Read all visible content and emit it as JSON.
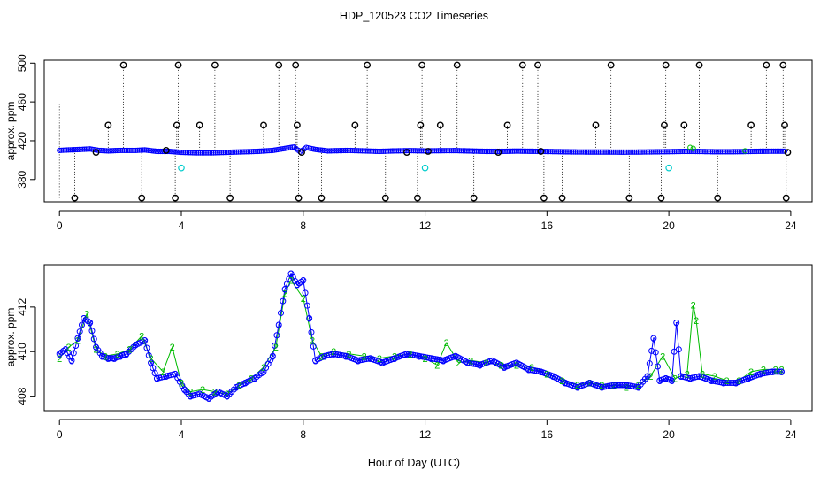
{
  "figure": {
    "title": "HDP_120523  CO2 Timeseries",
    "xlabel": "Hour of Day (UTC)"
  },
  "colors": {
    "axis": "#000000",
    "series_outlier": "#000000",
    "series_main": "#0000ff",
    "series_flag": "#00cccc",
    "series_2": "#00bb00",
    "series_3": "#0000ff"
  },
  "chart_data": [
    {
      "type": "scatter",
      "title": "",
      "xlabel": "",
      "ylabel": "approx. ppm",
      "xlim": [
        -0.5,
        24.7
      ],
      "ylim": [
        357,
        503
      ],
      "xticks": [
        0,
        4,
        8,
        12,
        16,
        20,
        24
      ],
      "yticks": [
        380,
        420,
        460,
        500
      ],
      "baseline": [
        [
          0,
          410
        ],
        [
          0.3,
          410.5
        ],
        [
          0.7,
          411
        ],
        [
          1.0,
          411.5
        ],
        [
          1.3,
          410
        ],
        [
          1.6,
          409.5
        ],
        [
          2.0,
          410
        ],
        [
          2.5,
          410
        ],
        [
          2.8,
          410.5
        ],
        [
          3.2,
          409
        ],
        [
          3.6,
          409
        ],
        [
          4.0,
          408
        ],
        [
          4.5,
          407.5
        ],
        [
          5.0,
          407.5
        ],
        [
          5.5,
          408
        ],
        [
          6.0,
          408.5
        ],
        [
          6.5,
          409
        ],
        [
          7.0,
          410
        ],
        [
          7.4,
          412
        ],
        [
          7.7,
          413.5
        ],
        [
          7.9,
          408.5
        ],
        [
          8.1,
          413
        ],
        [
          8.4,
          411
        ],
        [
          8.8,
          409.5
        ],
        [
          9.5,
          410
        ],
        [
          10,
          409.5
        ],
        [
          10.5,
          409
        ],
        [
          11,
          409.5
        ],
        [
          11.5,
          409.8
        ],
        [
          12,
          409.5
        ],
        [
          12.5,
          409.7
        ],
        [
          13,
          409.8
        ],
        [
          13.5,
          409.4
        ],
        [
          14,
          409
        ],
        [
          14.5,
          409
        ],
        [
          15,
          409.3
        ],
        [
          15.5,
          409.1
        ],
        [
          16,
          408.9
        ],
        [
          16.5,
          408.6
        ],
        [
          17,
          408.4
        ],
        [
          17.5,
          408.3
        ],
        [
          18,
          408.3
        ],
        [
          18.5,
          408.2
        ],
        [
          19,
          408.3
        ],
        [
          19.5,
          408.5
        ],
        [
          20,
          408.7
        ],
        [
          20.5,
          409
        ],
        [
          21,
          408.9
        ],
        [
          21.5,
          408.6
        ],
        [
          22,
          408.6
        ],
        [
          22.5,
          408.8
        ],
        [
          23,
          409.1
        ],
        [
          23.5,
          409.2
        ],
        [
          23.8,
          409.2
        ]
      ],
      "outliers": [
        [
          0.5,
          361
        ],
        [
          1.2,
          408
        ],
        [
          1.6,
          436
        ],
        [
          2.1,
          498
        ],
        [
          2.7,
          361
        ],
        [
          3.5,
          410
        ],
        [
          3.8,
          361
        ],
        [
          3.85,
          436
        ],
        [
          3.9,
          498
        ],
        [
          4.6,
          436
        ],
        [
          5.1,
          498
        ],
        [
          5.6,
          361
        ],
        [
          6.7,
          436
        ],
        [
          7.2,
          498
        ],
        [
          7.75,
          498
        ],
        [
          7.8,
          436
        ],
        [
          7.85,
          361
        ],
        [
          7.95,
          408
        ],
        [
          8.6,
          361
        ],
        [
          9.7,
          436
        ],
        [
          10.1,
          498
        ],
        [
          10.7,
          361
        ],
        [
          11.4,
          408
        ],
        [
          11.75,
          361
        ],
        [
          11.85,
          436
        ],
        [
          11.9,
          498
        ],
        [
          12.1,
          409
        ],
        [
          12.5,
          436
        ],
        [
          13.05,
          498
        ],
        [
          13.6,
          361
        ],
        [
          14.4,
          408
        ],
        [
          14.7,
          436
        ],
        [
          15.2,
          498
        ],
        [
          15.7,
          498
        ],
        [
          15.8,
          409
        ],
        [
          15.9,
          361
        ],
        [
          16.5,
          361
        ],
        [
          17.6,
          436
        ],
        [
          18.1,
          498
        ],
        [
          18.7,
          361
        ],
        [
          19.75,
          361
        ],
        [
          19.85,
          436
        ],
        [
          19.9,
          498
        ],
        [
          20.5,
          436
        ],
        [
          21.0,
          498
        ],
        [
          21.6,
          361
        ],
        [
          22.7,
          436
        ],
        [
          23.2,
          498
        ],
        [
          23.75,
          498
        ],
        [
          23.8,
          436
        ],
        [
          23.85,
          361
        ],
        [
          23.9,
          408
        ]
      ],
      "flagged": [
        [
          4.0,
          392
        ],
        [
          12.0,
          392
        ],
        [
          20.0,
          392
        ]
      ],
      "secondary": [
        [
          20.7,
          413
        ],
        [
          20.8,
          412
        ],
        [
          22.5,
          409.5
        ]
      ]
    },
    {
      "type": "scatter",
      "title": "",
      "xlabel": "",
      "ylabel": "approx. ppm",
      "xlim": [
        -0.5,
        24.7
      ],
      "ylim": [
        407.35,
        413.9
      ],
      "xticks": [
        0,
        4,
        8,
        12,
        16,
        20,
        24
      ],
      "yticks": [
        408,
        410,
        412
      ],
      "series_3": [
        [
          0,
          409.9
        ],
        [
          0.2,
          410.1
        ],
        [
          0.4,
          409.6
        ],
        [
          0.6,
          410.6
        ],
        [
          0.8,
          411.5
        ],
        [
          1.0,
          411.3
        ],
        [
          1.2,
          410.2
        ],
        [
          1.4,
          409.8
        ],
        [
          1.6,
          409.7
        ],
        [
          1.8,
          409.7
        ],
        [
          2.0,
          409.8
        ],
        [
          2.2,
          409.9
        ],
        [
          2.5,
          410.3
        ],
        [
          2.8,
          410.5
        ],
        [
          3.0,
          409.5
        ],
        [
          3.2,
          408.8
        ],
        [
          3.5,
          408.9
        ],
        [
          3.8,
          409.0
        ],
        [
          4.1,
          408.3
        ],
        [
          4.3,
          408.0
        ],
        [
          4.6,
          408.1
        ],
        [
          4.9,
          407.9
        ],
        [
          5.2,
          408.2
        ],
        [
          5.5,
          408.0
        ],
        [
          5.8,
          408.4
        ],
        [
          6.1,
          408.6
        ],
        [
          6.4,
          408.8
        ],
        [
          6.7,
          409.1
        ],
        [
          7.0,
          409.8
        ],
        [
          7.2,
          411.2
        ],
        [
          7.4,
          412.8
        ],
        [
          7.6,
          413.5
        ],
        [
          7.8,
          413.0
        ],
        [
          8.0,
          413.2
        ],
        [
          8.2,
          411.5
        ],
        [
          8.4,
          409.6
        ],
        [
          8.7,
          409.8
        ],
        [
          9.0,
          409.9
        ],
        [
          9.4,
          409.8
        ],
        [
          9.8,
          409.6
        ],
        [
          10.2,
          409.7
        ],
        [
          10.6,
          409.5
        ],
        [
          11.0,
          409.7
        ],
        [
          11.4,
          409.9
        ],
        [
          11.8,
          409.8
        ],
        [
          12.2,
          409.7
        ],
        [
          12.6,
          409.6
        ],
        [
          13.0,
          409.8
        ],
        [
          13.4,
          409.5
        ],
        [
          13.8,
          409.4
        ],
        [
          14.2,
          409.6
        ],
        [
          14.6,
          409.3
        ],
        [
          15.0,
          409.5
        ],
        [
          15.4,
          409.2
        ],
        [
          15.8,
          409.1
        ],
        [
          16.2,
          408.9
        ],
        [
          16.6,
          408.6
        ],
        [
          17.0,
          408.4
        ],
        [
          17.4,
          408.6
        ],
        [
          17.8,
          408.4
        ],
        [
          18.2,
          408.5
        ],
        [
          18.6,
          408.5
        ],
        [
          19.0,
          408.4
        ],
        [
          19.3,
          408.9
        ],
        [
          19.5,
          410.6
        ],
        [
          19.7,
          408.7
        ],
        [
          19.9,
          408.8
        ],
        [
          20.1,
          408.7
        ],
        [
          20.25,
          411.3
        ],
        [
          20.4,
          408.9
        ],
        [
          20.7,
          408.8
        ],
        [
          21.0,
          408.9
        ],
        [
          21.4,
          408.7
        ],
        [
          21.8,
          408.6
        ],
        [
          22.2,
          408.6
        ],
        [
          22.6,
          408.8
        ],
        [
          23.0,
          409.0
        ],
        [
          23.4,
          409.1
        ],
        [
          23.7,
          409.1
        ]
      ],
      "series_2": [
        [
          0,
          409.7
        ],
        [
          0.3,
          410.2
        ],
        [
          0.6,
          410.5
        ],
        [
          0.9,
          411.7
        ],
        [
          1.2,
          410.1
        ],
        [
          1.5,
          409.8
        ],
        [
          1.9,
          409.9
        ],
        [
          2.3,
          410.1
        ],
        [
          2.7,
          410.7
        ],
        [
          3.0,
          409.7
        ],
        [
          3.4,
          409.1
        ],
        [
          3.7,
          410.2
        ],
        [
          4.0,
          408.6
        ],
        [
          4.3,
          408.2
        ],
        [
          4.7,
          408.3
        ],
        [
          5.1,
          408.2
        ],
        [
          5.5,
          408.1
        ],
        [
          5.9,
          408.5
        ],
        [
          6.3,
          408.8
        ],
        [
          6.7,
          409.3
        ],
        [
          7.1,
          410.2
        ],
        [
          7.4,
          412.6
        ],
        [
          7.6,
          413.2
        ],
        [
          8.0,
          412.4
        ],
        [
          8.3,
          410.5
        ],
        [
          8.6,
          409.8
        ],
        [
          9.0,
          410.0
        ],
        [
          9.5,
          409.9
        ],
        [
          10.0,
          409.8
        ],
        [
          10.5,
          409.7
        ],
        [
          11.0,
          409.8
        ],
        [
          11.5,
          409.9
        ],
        [
          12.0,
          409.7
        ],
        [
          12.4,
          409.4
        ],
        [
          12.7,
          410.4
        ],
        [
          13.1,
          409.5
        ],
        [
          13.5,
          409.6
        ],
        [
          14.0,
          409.5
        ],
        [
          14.5,
          409.4
        ],
        [
          15.0,
          409.4
        ],
        [
          15.5,
          409.3
        ],
        [
          16.0,
          409.0
        ],
        [
          16.5,
          408.7
        ],
        [
          17.0,
          408.5
        ],
        [
          17.4,
          408.6
        ],
        [
          17.8,
          408.5
        ],
        [
          18.2,
          408.5
        ],
        [
          18.6,
          408.4
        ],
        [
          19.0,
          408.5
        ],
        [
          19.4,
          408.9
        ],
        [
          19.8,
          409.8
        ],
        [
          20.2,
          408.8
        ],
        [
          20.6,
          409.0
        ],
        [
          20.8,
          412.1
        ],
        [
          20.9,
          411.4
        ],
        [
          21.1,
          409.0
        ],
        [
          21.5,
          408.9
        ],
        [
          21.9,
          408.7
        ],
        [
          22.3,
          408.7
        ],
        [
          22.7,
          409.1
        ],
        [
          23.1,
          409.2
        ],
        [
          23.5,
          409.2
        ],
        [
          23.7,
          409.2
        ]
      ]
    }
  ]
}
